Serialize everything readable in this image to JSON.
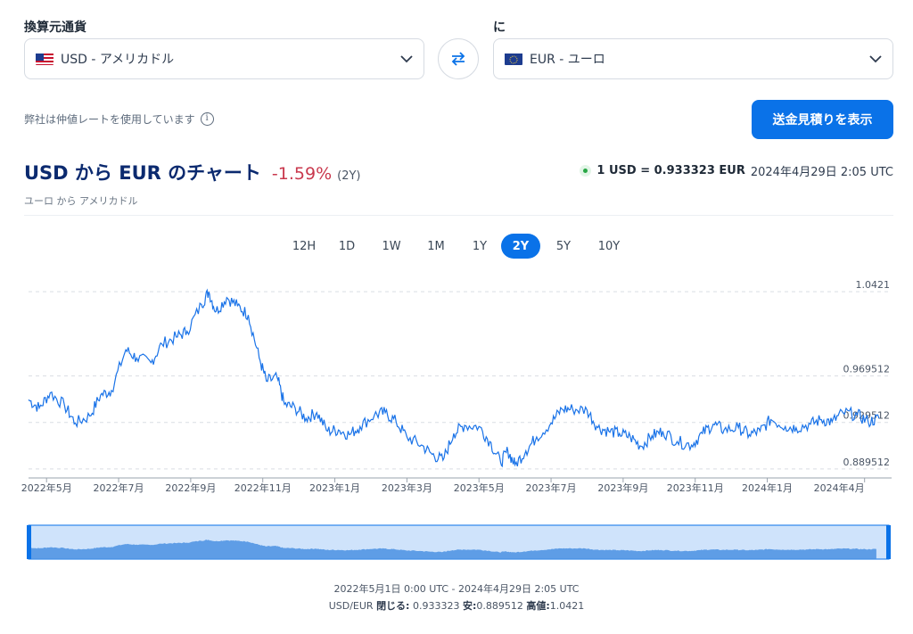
{
  "from": {
    "label": "換算元通貨",
    "value": "USD - アメリカドル",
    "flag": "us-flag-icon"
  },
  "to": {
    "label": "に",
    "value": "EUR - ユーロ",
    "flag": "eu-flag-icon"
  },
  "note": "弊社は仲値レートを使用しています",
  "cta_label": "送金見積りを表示",
  "header": {
    "title": "USD から EUR のチャート",
    "change": "-1.59%",
    "period": "(2Y)",
    "subtitle": "ユーロ から アメリカドル",
    "rate": "1 USD = 0.933323 EUR",
    "timestamp": "2024年4月29日 2:05 UTC"
  },
  "ranges": [
    {
      "label": "12H",
      "active": false
    },
    {
      "label": "1D",
      "active": false
    },
    {
      "label": "1W",
      "active": false
    },
    {
      "label": "1M",
      "active": false
    },
    {
      "label": "1Y",
      "active": false
    },
    {
      "label": "2Y",
      "active": true
    },
    {
      "label": "5Y",
      "active": false
    },
    {
      "label": "10Y",
      "active": false
    }
  ],
  "footer": {
    "range_text": "2022年5月1日 0:00 UTC - 2024年4月29日 2:05 UTC",
    "pair": "USD/EUR",
    "close_label": "閉じる:",
    "close_value": "0.933323",
    "low_label": "安:",
    "low_value": "0.889512",
    "high_label": "高値:",
    "high_value": "1.0421"
  },
  "colors": {
    "accent": "#0a72e8",
    "line": "#1a73e8",
    "negative": "#c9384d",
    "navigator_fill": "#cfe3fb",
    "navigator_area": "#4a90e2"
  },
  "chart_data": {
    "type": "line",
    "title": "USD から EUR のチャート",
    "series": [
      {
        "values": [
          [
            0.0,
            0.949
          ],
          [
            0.3,
            0.942
          ],
          [
            0.6,
            0.955
          ],
          [
            1.0,
            0.944
          ],
          [
            1.3,
            0.929
          ],
          [
            1.7,
            0.935
          ],
          [
            2.0,
            0.953
          ],
          [
            2.3,
            0.957
          ],
          [
            2.7,
            0.992
          ],
          [
            3.0,
            0.985
          ],
          [
            3.4,
            0.981
          ],
          [
            3.7,
            0.997
          ],
          [
            4.1,
            1.003
          ],
          [
            4.4,
            1.008
          ],
          [
            4.8,
            1.031
          ],
          [
            5.0,
            1.042
          ],
          [
            5.2,
            1.025
          ],
          [
            5.5,
            1.037
          ],
          [
            5.8,
            1.03
          ],
          [
            6.1,
            1.022
          ],
          [
            6.4,
            0.985
          ],
          [
            6.6,
            0.965
          ],
          [
            6.9,
            0.968
          ],
          [
            7.1,
            0.945
          ],
          [
            7.4,
            0.942
          ],
          [
            7.7,
            0.933
          ],
          [
            8.0,
            0.938
          ],
          [
            8.3,
            0.922
          ],
          [
            8.6,
            0.923
          ],
          [
            8.9,
            0.919
          ],
          [
            9.2,
            0.926
          ],
          [
            9.6,
            0.936
          ],
          [
            9.9,
            0.938
          ],
          [
            10.2,
            0.93
          ],
          [
            10.5,
            0.917
          ],
          [
            10.9,
            0.91
          ],
          [
            11.2,
            0.902
          ],
          [
            11.5,
            0.897
          ],
          [
            11.8,
            0.92
          ],
          [
            12.1,
            0.927
          ],
          [
            12.5,
            0.926
          ],
          [
            12.8,
            0.913
          ],
          [
            13.1,
            0.895
          ],
          [
            13.3,
            0.905
          ],
          [
            13.5,
            0.893
          ],
          [
            13.8,
            0.905
          ],
          [
            14.1,
            0.917
          ],
          [
            14.5,
            0.929
          ],
          [
            14.8,
            0.941
          ],
          [
            15.1,
            0.941
          ],
          [
            15.5,
            0.94
          ],
          [
            15.8,
            0.925
          ],
          [
            16.1,
            0.922
          ],
          [
            16.4,
            0.92
          ],
          [
            16.7,
            0.917
          ],
          [
            17.0,
            0.909
          ],
          [
            17.3,
            0.918
          ],
          [
            17.6,
            0.922
          ],
          [
            18.0,
            0.913
          ],
          [
            18.4,
            0.91
          ],
          [
            18.7,
            0.92
          ],
          [
            19.0,
            0.928
          ],
          [
            19.3,
            0.923
          ],
          [
            19.7,
            0.925
          ],
          [
            20.0,
            0.919
          ],
          [
            20.3,
            0.922
          ],
          [
            20.6,
            0.932
          ],
          [
            21.0,
            0.926
          ],
          [
            21.3,
            0.925
          ],
          [
            21.7,
            0.928
          ],
          [
            22.0,
            0.932
          ],
          [
            22.3,
            0.93
          ],
          [
            22.6,
            0.938
          ],
          [
            23.0,
            0.936
          ],
          [
            23.3,
            0.93
          ],
          [
            23.6,
            0.933
          ]
        ]
      }
    ],
    "xlabel": "",
    "ylabel": "",
    "x_tick_labels": [
      "2022年5月",
      "2022年7月",
      "2022年9月",
      "2022年11月",
      "2023年1月",
      "2023年3月",
      "2023年5月",
      "2023年7月",
      "2023年9月",
      "2023年11月",
      "2024年1月",
      "2024年4月"
    ],
    "x_tick_positions_months": [
      0.5,
      2.5,
      4.5,
      6.5,
      8.5,
      10.5,
      12.5,
      14.5,
      16.5,
      18.5,
      20.5,
      23.2
    ],
    "y_tick_labels": [
      "1.0421",
      "0.969512",
      "0.929512",
      "0.889512"
    ],
    "y_tick_values": [
      1.0421,
      0.969512,
      0.929512,
      0.889512
    ],
    "ylim": [
      0.884,
      1.046
    ],
    "grid": "horizontal dashed"
  }
}
